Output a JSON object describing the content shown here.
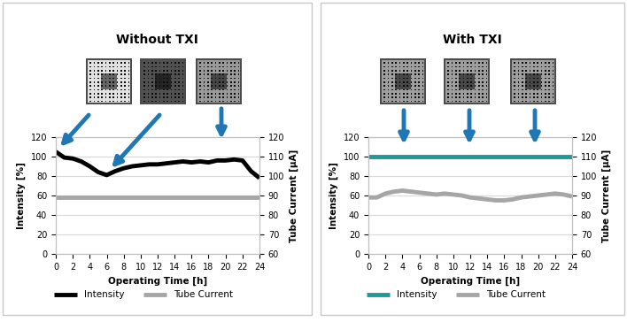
{
  "chart_data": [
    {
      "type": "line",
      "title": "Without TXI",
      "xlabel": "Operating Time [h]",
      "ylabel": "Intensity [%]",
      "y2label": "Tube Current [µA]",
      "x": [
        0,
        1,
        2,
        3,
        4,
        5,
        6,
        7,
        8,
        9,
        10,
        11,
        12,
        13,
        14,
        15,
        16,
        17,
        18,
        19,
        20,
        21,
        22,
        23,
        24
      ],
      "xlim": [
        0,
        24
      ],
      "xticks": [
        0,
        2,
        4,
        6,
        8,
        10,
        12,
        14,
        16,
        18,
        20,
        22,
        24
      ],
      "ylim": [
        0,
        120
      ],
      "yticks": [
        0,
        20,
        40,
        60,
        80,
        100,
        120
      ],
      "y2lim": [
        60,
        120
      ],
      "y2ticks": [
        60,
        70,
        80,
        90,
        100,
        110,
        120
      ],
      "grid": true,
      "legend": "lower left",
      "series": [
        {
          "name": "Intensity",
          "color": "#000000",
          "values": [
            105,
            99,
            98,
            95,
            90,
            84,
            81,
            85,
            88,
            90,
            91,
            92,
            92,
            93,
            94,
            95,
            94,
            95,
            94,
            96,
            96,
            97,
            96,
            85,
            78
          ]
        },
        {
          "name": "Tube Current",
          "color": "#a6a6a6",
          "axis": "y2",
          "values": [
            89,
            89,
            89,
            89,
            89,
            89,
            89,
            89,
            89,
            89,
            89,
            89,
            89,
            89,
            89,
            89,
            89,
            89,
            89,
            89,
            89,
            89,
            89,
            89,
            89
          ]
        }
      ]
    },
    {
      "type": "line",
      "title": "With TXI",
      "xlabel": "Operating Time [h]",
      "ylabel": "Intensity [%]",
      "y2label": "Tube Current [µA]",
      "x": [
        0,
        1,
        2,
        3,
        4,
        5,
        6,
        7,
        8,
        9,
        10,
        11,
        12,
        13,
        14,
        15,
        16,
        17,
        18,
        19,
        20,
        21,
        22,
        23,
        24
      ],
      "xlim": [
        0,
        24
      ],
      "xticks": [
        0,
        2,
        4,
        6,
        8,
        10,
        12,
        14,
        16,
        18,
        20,
        22,
        24
      ],
      "ylim": [
        0,
        120
      ],
      "yticks": [
        0,
        20,
        40,
        60,
        80,
        100,
        120
      ],
      "y2lim": [
        60,
        120
      ],
      "y2ticks": [
        60,
        70,
        80,
        90,
        100,
        110,
        120
      ],
      "grid": true,
      "legend": "lower left",
      "series": [
        {
          "name": "Intensity",
          "color": "#1a9a9a",
          "values": [
            100,
            100,
            100,
            100,
            100,
            100,
            100,
            100,
            100,
            100,
            100,
            100,
            100,
            100,
            100,
            100,
            100,
            100,
            100,
            100,
            100,
            100,
            100,
            100,
            100
          ]
        },
        {
          "name": "Tube Current",
          "color": "#a6a6a6",
          "axis": "y2",
          "values": [
            89,
            89,
            91,
            92,
            92.5,
            92,
            91.5,
            91,
            90.5,
            91,
            90.5,
            90,
            89,
            88.5,
            88,
            87.5,
            87.5,
            88,
            89,
            89.5,
            90,
            90.5,
            91,
            90.5,
            89.5
          ]
        }
      ]
    }
  ]
}
